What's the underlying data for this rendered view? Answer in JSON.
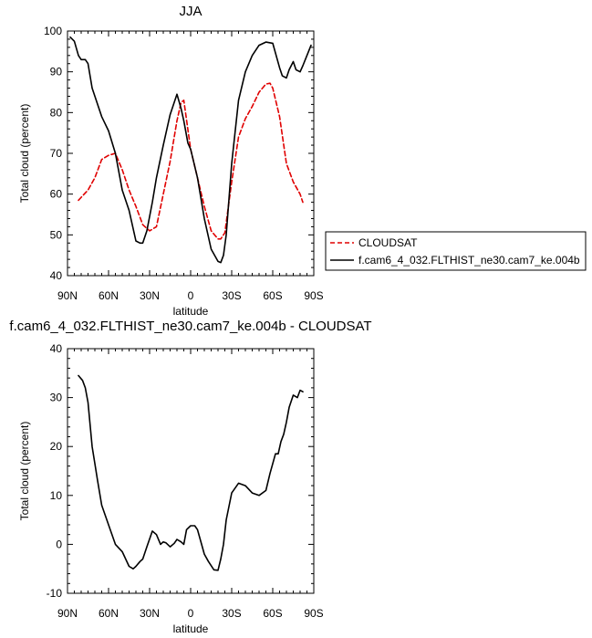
{
  "chart_data": [
    {
      "type": "line",
      "title": "JJA",
      "xlabel": "latitude",
      "ylabel": "Total cloud (percent)",
      "xlim": [
        -90,
        90
      ],
      "ylim": [
        40,
        100
      ],
      "xticks": [
        -90,
        -60,
        -30,
        0,
        30,
        60,
        90
      ],
      "xtick_labels": [
        "90N",
        "60N",
        "30N",
        "0",
        "30S",
        "60S",
        "90S"
      ],
      "yticks": [
        40,
        50,
        60,
        70,
        80,
        90,
        100
      ],
      "ytick_labels": [
        "40",
        "50",
        "60",
        "70",
        "80",
        "90",
        "100"
      ],
      "legend_position": "right",
      "series": [
        {
          "name": "CLOUDSAT",
          "color": "#e00000",
          "dash": "dashed",
          "x": [
            -82,
            -75,
            -70,
            -65,
            -60,
            -55,
            -50,
            -45,
            -40,
            -35,
            -30,
            -25,
            -20,
            -15,
            -10,
            -7,
            -5,
            0,
            5,
            10,
            15,
            20,
            22,
            25,
            30,
            35,
            40,
            45,
            50,
            55,
            58,
            60,
            65,
            70,
            75,
            80,
            82
          ],
          "y": [
            58.5,
            61,
            64,
            68.5,
            69.5,
            70,
            66,
            61,
            57,
            52.5,
            51,
            52,
            60,
            68,
            78,
            82.5,
            83,
            71,
            64,
            57,
            51,
            49,
            49,
            50.5,
            63,
            74,
            78.5,
            81.5,
            85,
            87,
            87.2,
            86,
            79,
            67.5,
            63,
            60,
            58
          ]
        },
        {
          "name": "f.cam6_4_032.FLTHIST_ne30.cam7_ke.004b",
          "color": "#000000",
          "dash": "solid",
          "x": [
            -88,
            -85,
            -82,
            -80,
            -77,
            -75,
            -72,
            -68,
            -65,
            -60,
            -55,
            -50,
            -45,
            -40,
            -37,
            -35,
            -32,
            -28,
            -25,
            -20,
            -15,
            -10,
            -7,
            -5,
            -2,
            0,
            5,
            10,
            15,
            20,
            22,
            24,
            26,
            30,
            35,
            40,
            45,
            50,
            55,
            60,
            65,
            67,
            70,
            72,
            75,
            77,
            80,
            82,
            85,
            88
          ],
          "y": [
            98.5,
            97.5,
            94,
            93,
            93,
            92,
            86,
            82,
            79,
            75.5,
            70,
            61,
            56,
            48.5,
            48,
            48,
            51,
            58,
            64,
            72,
            79.5,
            84.5,
            81,
            78,
            72.5,
            71,
            64,
            54,
            46.5,
            43.5,
            43.2,
            45,
            50,
            67.5,
            83,
            90,
            94,
            96.5,
            97.3,
            97,
            91,
            89,
            88.5,
            90.5,
            92.5,
            90.5,
            90,
            91.5,
            94,
            96.5
          ]
        }
      ]
    },
    {
      "type": "line",
      "title": "f.cam6_4_032.FLTHIST_ne30.cam7_ke.004b - CLOUDSAT",
      "xlabel": "latitude",
      "ylabel": "Total cloud (percent)",
      "xlim": [
        -90,
        90
      ],
      "ylim": [
        -10,
        40
      ],
      "xticks": [
        -90,
        -60,
        -30,
        0,
        30,
        60,
        90
      ],
      "xtick_labels": [
        "90N",
        "60N",
        "30N",
        "0",
        "30S",
        "60S",
        "90S"
      ],
      "yticks": [
        -10,
        0,
        10,
        20,
        30,
        40
      ],
      "ytick_labels": [
        "-10",
        "0",
        "10",
        "20",
        "30",
        "40"
      ],
      "series": [
        {
          "color": "#000000",
          "dash": "solid",
          "x": [
            -82,
            -79,
            -77,
            -75,
            -72,
            -68,
            -65,
            -60,
            -55,
            -50,
            -45,
            -42,
            -40,
            -37,
            -35,
            -32,
            -28,
            -25,
            -22,
            -20,
            -18,
            -15,
            -12,
            -10,
            -7,
            -5,
            -3,
            0,
            3,
            5,
            8,
            10,
            13,
            17,
            20,
            22,
            24,
            26,
            30,
            35,
            40,
            45,
            50,
            55,
            58,
            62,
            64,
            66,
            68,
            70,
            72,
            75,
            78,
            80,
            82
          ],
          "y": [
            34.5,
            33.5,
            32,
            29,
            20,
            13,
            8,
            4,
            0,
            -1.5,
            -4.5,
            -5,
            -4.5,
            -3.5,
            -3,
            -0.5,
            2.7,
            2,
            0,
            0.5,
            0.3,
            -0.5,
            0.2,
            1,
            0.5,
            0,
            3,
            3.8,
            3.8,
            3,
            0,
            -2,
            -3.5,
            -5.2,
            -5.3,
            -3,
            0,
            5,
            10.5,
            12.5,
            12,
            10.5,
            10,
            11,
            14.5,
            18.5,
            18.5,
            21,
            22.5,
            25,
            28,
            30.5,
            30,
            31.5,
            31.2
          ]
        }
      ]
    }
  ]
}
